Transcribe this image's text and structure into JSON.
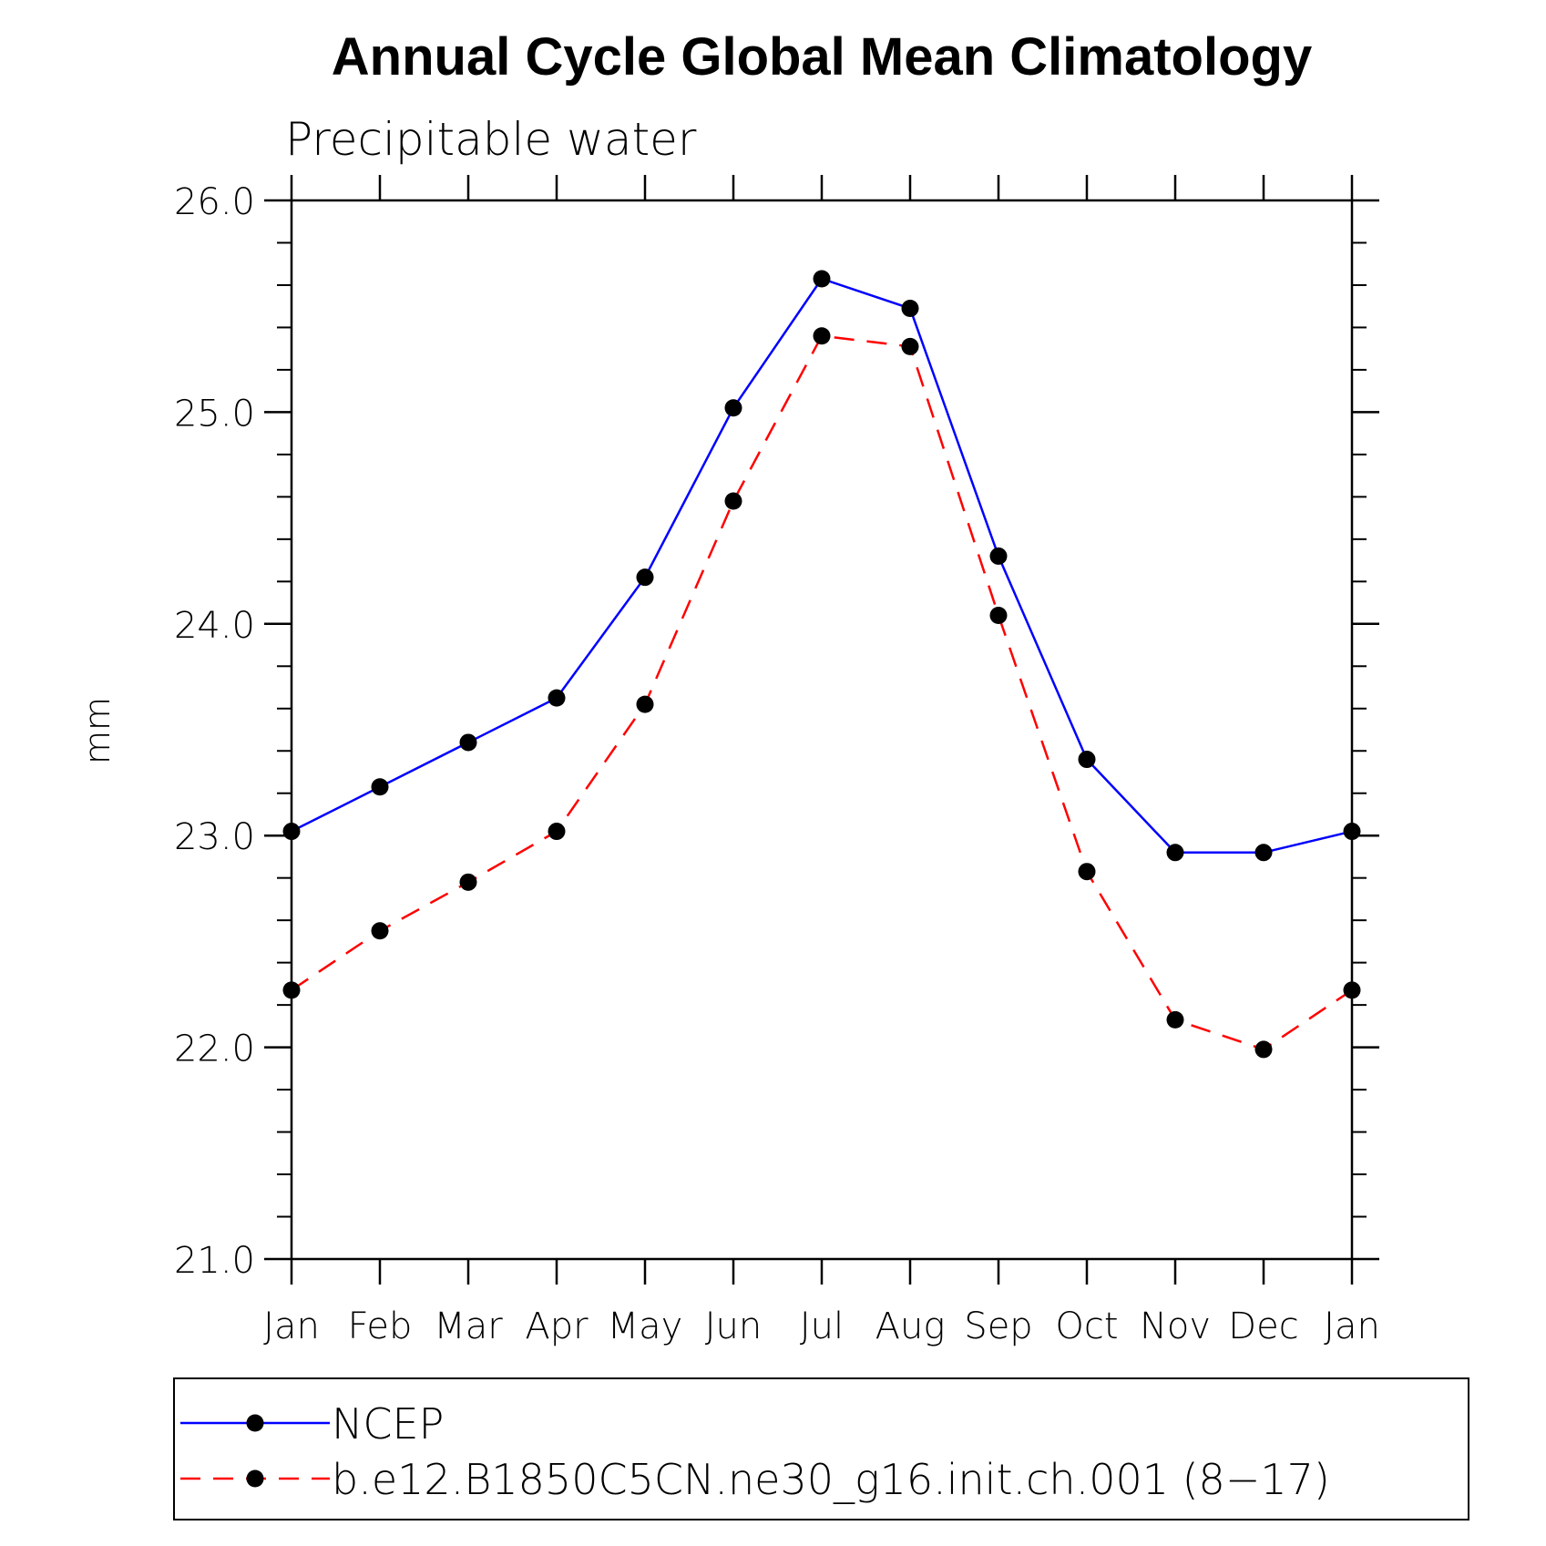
{
  "chart_data": {
    "type": "line",
    "title": "Annual Cycle Global Mean Climatology",
    "subtitle": "Precipitable water",
    "xlabel": "",
    "ylabel": "mm",
    "categories": [
      "Jan",
      "Feb",
      "Mar",
      "Apr",
      "May",
      "Jun",
      "Jul",
      "Aug",
      "Sep",
      "Oct",
      "Nov",
      "Dec",
      "Jan"
    ],
    "ylim": [
      21.0,
      26.0
    ],
    "yticks": [
      "21.0",
      "22.0",
      "23.0",
      "24.0",
      "25.0",
      "26.0"
    ],
    "grid": false,
    "legend_position": "bottom",
    "series": [
      {
        "name": "NCEP",
        "color": "#0000ff",
        "dash": "solid",
        "marker": "filled-circle",
        "values": [
          23.02,
          23.23,
          23.44,
          23.65,
          24.22,
          25.02,
          25.63,
          25.49,
          24.32,
          23.36,
          22.92,
          22.92,
          23.02
        ]
      },
      {
        "name": "b.e12.B1850C5CN.ne30_g16.init.ch.001 (8−17)",
        "color": "#ff0000",
        "dash": "dashed",
        "marker": "filled-circle",
        "values": [
          22.27,
          22.55,
          22.78,
          23.02,
          23.62,
          24.58,
          25.36,
          25.31,
          24.04,
          22.83,
          22.13,
          21.99,
          22.27
        ]
      }
    ]
  }
}
